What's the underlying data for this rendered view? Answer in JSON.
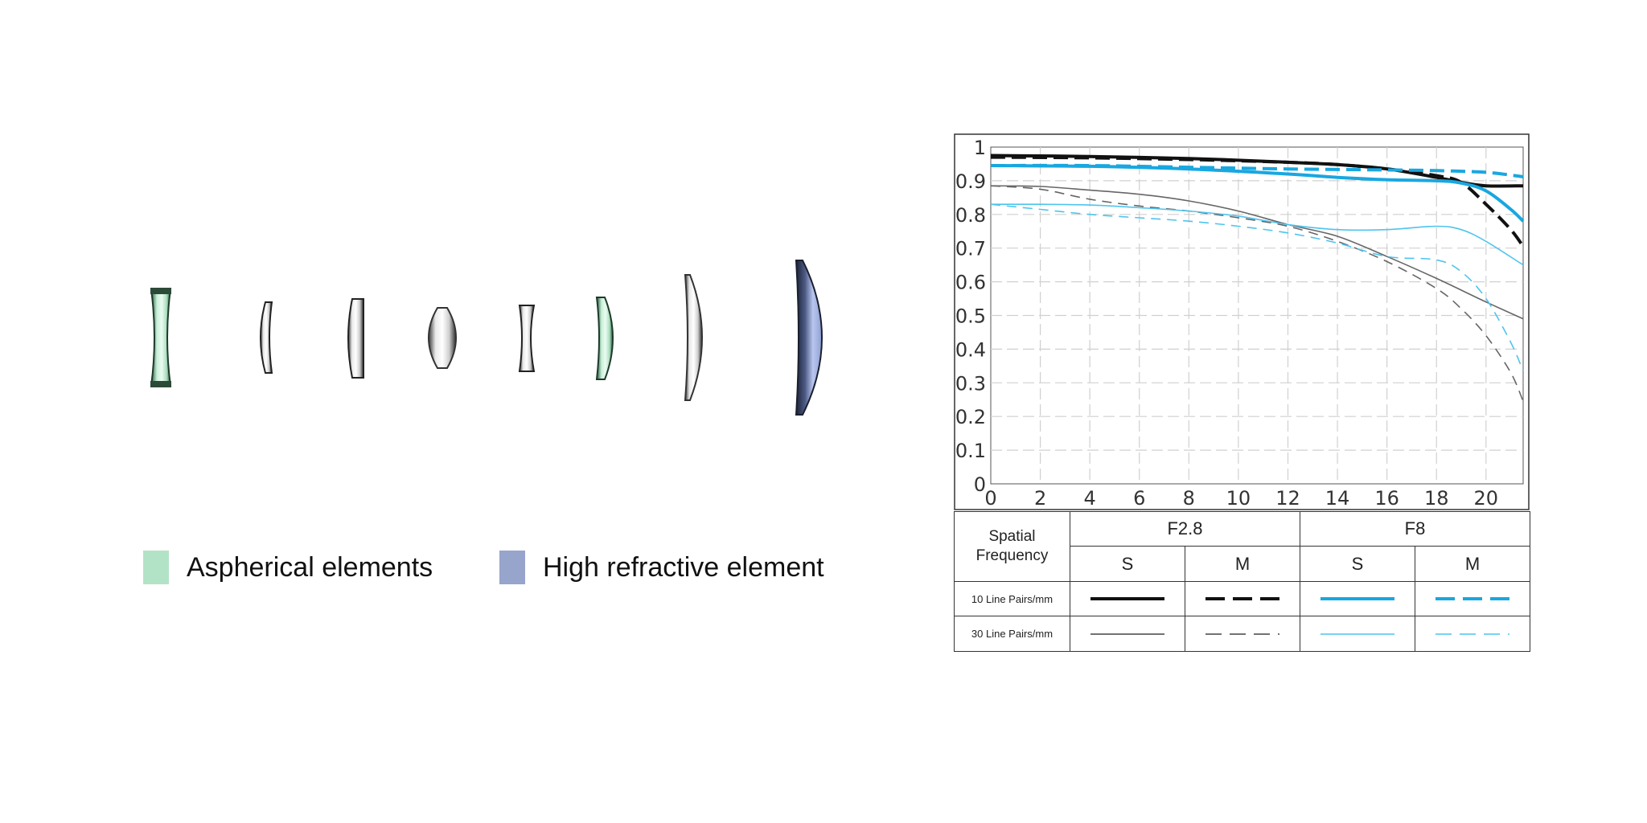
{
  "legend": {
    "aspherical": {
      "label": "Aspherical elements",
      "color": "#b3e3c6"
    },
    "high_refractive": {
      "label": "High refractive element",
      "color": "#97a4cc"
    }
  },
  "lens_elements": [
    {
      "name": "element-1",
      "type": "aspherical"
    },
    {
      "name": "element-2",
      "type": "standard"
    },
    {
      "name": "element-3",
      "type": "standard"
    },
    {
      "name": "element-4",
      "type": "standard"
    },
    {
      "name": "element-5",
      "type": "standard"
    },
    {
      "name": "element-6",
      "type": "aspherical"
    },
    {
      "name": "element-7",
      "type": "standard"
    },
    {
      "name": "element-8",
      "type": "high_refractive"
    }
  ],
  "chart_data": {
    "type": "line",
    "title": "",
    "xlabel": "",
    "ylabel": "",
    "xlim": [
      0,
      21.5
    ],
    "ylim": [
      0,
      1
    ],
    "x_ticks": [
      "0",
      "2",
      "4",
      "6",
      "8",
      "10",
      "12",
      "14",
      "16",
      "18",
      "20"
    ],
    "y_ticks": [
      "0",
      "0.1",
      "0.2",
      "0.3",
      "0.4",
      "0.5",
      "0.6",
      "0.7",
      "0.8",
      "0.9",
      "1"
    ],
    "grid": true,
    "colors": {
      "f28": "#111111",
      "f8": "#19a7e0",
      "f28_thin": "#666666",
      "f8_thin": "#4fc4ee"
    },
    "series": [
      {
        "aperture": "F2.8",
        "direction": "S",
        "lpmm": 10,
        "x": [
          0,
          4,
          8,
          12,
          14,
          16,
          18,
          19,
          20,
          21.5
        ],
        "y": [
          0.975,
          0.972,
          0.966,
          0.955,
          0.948,
          0.935,
          0.91,
          0.895,
          0.885,
          0.885
        ]
      },
      {
        "aperture": "F2.8",
        "direction": "M",
        "lpmm": 10,
        "x": [
          0,
          4,
          8,
          12,
          14,
          16,
          18,
          19,
          20,
          21,
          21.5
        ],
        "y": [
          0.97,
          0.968,
          0.963,
          0.955,
          0.948,
          0.935,
          0.915,
          0.895,
          0.83,
          0.755,
          0.705
        ]
      },
      {
        "aperture": "F8",
        "direction": "S",
        "lpmm": 10,
        "x": [
          0,
          4,
          8,
          12,
          14,
          16,
          18,
          19,
          20,
          21,
          21.5
        ],
        "y": [
          0.945,
          0.943,
          0.935,
          0.92,
          0.91,
          0.903,
          0.9,
          0.893,
          0.87,
          0.815,
          0.78
        ]
      },
      {
        "aperture": "F8",
        "direction": "M",
        "lpmm": 10,
        "x": [
          0,
          4,
          8,
          12,
          16,
          18,
          20,
          21.5
        ],
        "y": [
          0.945,
          0.945,
          0.94,
          0.935,
          0.932,
          0.93,
          0.925,
          0.912
        ]
      },
      {
        "aperture": "F2.8",
        "direction": "S",
        "lpmm": 30,
        "x": [
          0,
          2,
          4,
          6,
          8,
          10,
          12,
          14,
          16,
          18,
          20,
          21.5
        ],
        "y": [
          0.885,
          0.883,
          0.872,
          0.86,
          0.84,
          0.81,
          0.77,
          0.735,
          0.675,
          0.61,
          0.54,
          0.49
        ]
      },
      {
        "aperture": "F2.8",
        "direction": "M",
        "lpmm": 30,
        "x": [
          0,
          2,
          4,
          6,
          8,
          10,
          12,
          14,
          16,
          18,
          19,
          20,
          21,
          21.5
        ],
        "y": [
          0.885,
          0.875,
          0.845,
          0.825,
          0.81,
          0.79,
          0.765,
          0.72,
          0.66,
          0.58,
          0.52,
          0.44,
          0.33,
          0.245
        ]
      },
      {
        "aperture": "F8",
        "direction": "S",
        "lpmm": 30,
        "x": [
          0,
          2,
          4,
          6,
          8,
          10,
          12,
          14,
          16,
          18,
          19,
          20,
          21.5
        ],
        "y": [
          0.83,
          0.83,
          0.828,
          0.82,
          0.81,
          0.795,
          0.77,
          0.755,
          0.755,
          0.765,
          0.755,
          0.72,
          0.65
        ]
      },
      {
        "aperture": "F8",
        "direction": "M",
        "lpmm": 30,
        "x": [
          0,
          2,
          4,
          6,
          8,
          10,
          12,
          14,
          16,
          18,
          19,
          20,
          21,
          21.5
        ],
        "y": [
          0.83,
          0.815,
          0.8,
          0.79,
          0.78,
          0.765,
          0.745,
          0.715,
          0.675,
          0.665,
          0.63,
          0.55,
          0.42,
          0.335
        ]
      }
    ]
  },
  "key_table": {
    "corner_line1": "Spatial",
    "corner_line2": "Frequency",
    "aperture_headers": [
      "F2.8",
      "F8"
    ],
    "direction_headers": [
      "S",
      "M",
      "S",
      "M"
    ],
    "row_labels": [
      "10 Line Pairs/mm",
      "30 Line Pairs/mm"
    ]
  }
}
